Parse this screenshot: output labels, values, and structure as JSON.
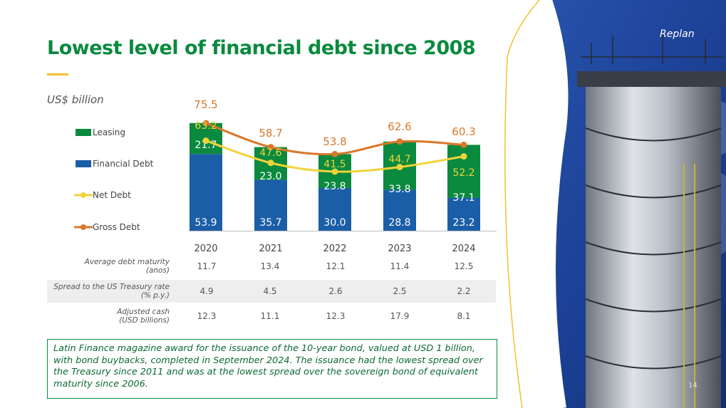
{
  "header": {
    "title": "Lowest level of financial debt since 2008",
    "unit": "US$ billion",
    "brand": "Replan",
    "page_number": "14"
  },
  "table": {
    "rows": [
      {
        "label_line1": "Average debt maturity",
        "label_line2": "(anos)",
        "values": [
          "11.7",
          "13.4",
          "12.1",
          "11.4",
          "12.5"
        ]
      },
      {
        "label_line1": "Spread to the US Treasury rate",
        "label_line2": "(% p.y.)",
        "values": [
          "4.9",
          "4.5",
          "2.6",
          "2.5",
          "2.2"
        ]
      },
      {
        "label_line1": "Adjusted cash",
        "label_line2": "(USD billions)",
        "values": [
          "12.3",
          "11.1",
          "12.3",
          "17.9",
          "8.1"
        ]
      }
    ]
  },
  "note": {
    "text": "Latin Finance magazine award for the issuance of the 10-year bond, valued at USD 1 billion, with bond buybacks, completed in September 2024. The issuance had the lowest spread over the Treasury since 2011 and was at the lowest spread over the sovereign bond of equivalent maturity since 2006."
  },
  "colors": {
    "title_green": "#0a8a3e",
    "leasing": "#0a8a3e",
    "financial_debt": "#1b5ea8",
    "net_debt": "#f2d33a",
    "gross_debt": "#d9782a",
    "label_net": "#f2d33a",
    "label_gross": "#d9782a"
  },
  "chart_data": {
    "type": "bar",
    "stacked": true,
    "categories": [
      "2020",
      "2021",
      "2022",
      "2023",
      "2024"
    ],
    "series": [
      {
        "name": "Leasing",
        "kind": "bar",
        "values": [
          21.7,
          23.0,
          23.8,
          33.8,
          37.1
        ]
      },
      {
        "name": "Financial Debt",
        "kind": "bar",
        "values": [
          53.9,
          35.7,
          30.0,
          28.8,
          23.2
        ]
      },
      {
        "name": "Net Debt",
        "kind": "line",
        "values": [
          63.2,
          47.6,
          41.5,
          44.7,
          52.2
        ]
      },
      {
        "name": "Gross Debt",
        "kind": "line",
        "values": [
          75.5,
          58.7,
          53.8,
          62.6,
          60.3
        ]
      }
    ],
    "legend": [
      "Leasing",
      "Financial Debt",
      "Net Debt",
      "Gross Debt"
    ],
    "legend_position": "left",
    "ylim": [
      0,
      80
    ],
    "grid": false,
    "title": "",
    "xlabel": "",
    "ylabel": ""
  }
}
